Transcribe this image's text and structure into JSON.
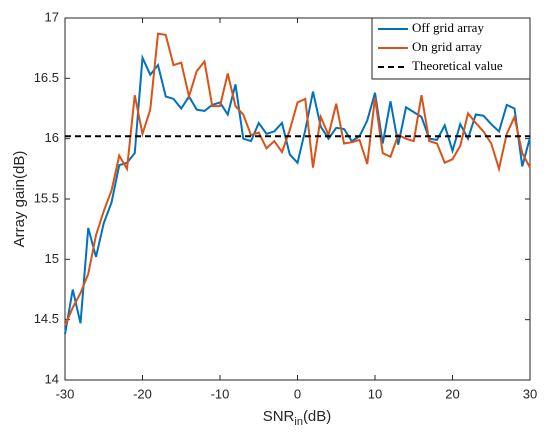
{
  "chart_data": {
    "type": "line",
    "ylabel": "Array gain(dB)",
    "xlabel": {
      "text": "SNR",
      "subscript": "in",
      "suffix": "(dB)"
    },
    "x": [
      -30,
      -29,
      -28,
      -27,
      -26,
      -25,
      -24,
      -23,
      -22,
      -21,
      -20,
      -19,
      -18,
      -17,
      -16,
      -15,
      -14,
      -13,
      -12,
      -11,
      -10,
      -9,
      -8,
      -7,
      -6,
      -5,
      -4,
      -3,
      -2,
      -1,
      0,
      1,
      2,
      3,
      4,
      5,
      6,
      7,
      8,
      9,
      10,
      11,
      12,
      13,
      14,
      15,
      16,
      17,
      18,
      19,
      20,
      21,
      22,
      23,
      24,
      25,
      26,
      27,
      28,
      29,
      30
    ],
    "series": [
      {
        "name": "Off grid array",
        "color": "#0072bd",
        "values": [
          14.38,
          14.75,
          14.47,
          15.26,
          15.02,
          15.3,
          15.47,
          15.78,
          15.8,
          15.88,
          16.67,
          16.53,
          16.61,
          16.35,
          16.33,
          16.25,
          16.35,
          16.24,
          16.23,
          16.28,
          16.3,
          16.2,
          16.45,
          16.0,
          15.98,
          16.13,
          16.04,
          16.06,
          16.13,
          15.87,
          15.8,
          16.07,
          16.39,
          16.1,
          16.0,
          16.09,
          16.08,
          15.98,
          16.02,
          16.15,
          16.38,
          15.96,
          16.31,
          15.95,
          16.26,
          16.22,
          16.18,
          16.0,
          15.99,
          16.11,
          15.9,
          16.12,
          16.0,
          16.2,
          16.19,
          16.12,
          16.06,
          16.28,
          16.25,
          15.77,
          16.01
        ]
      },
      {
        "name": "On grid array",
        "color": "#d95319",
        "values": [
          14.45,
          14.6,
          14.72,
          14.88,
          15.2,
          15.4,
          15.57,
          15.86,
          15.75,
          16.36,
          16.04,
          16.24,
          16.87,
          16.86,
          16.61,
          16.63,
          16.35,
          16.56,
          16.64,
          16.27,
          16.27,
          16.54,
          16.27,
          16.2,
          16.03,
          16.05,
          15.92,
          15.98,
          15.89,
          16.07,
          16.3,
          16.33,
          15.76,
          16.18,
          16.03,
          16.29,
          15.96,
          15.97,
          15.99,
          15.79,
          16.34,
          15.88,
          15.85,
          16.03,
          16.0,
          15.98,
          16.36,
          15.98,
          15.96,
          15.8,
          15.83,
          15.94,
          16.21,
          16.13,
          16.06,
          15.96,
          15.75,
          16.04,
          16.18,
          15.88,
          15.76
        ]
      }
    ],
    "reference": {
      "name": "Theoretical value",
      "value": 16.02,
      "color": "#000000"
    },
    "xlim": [
      -30,
      30
    ],
    "xticks": [
      -30,
      -20,
      -10,
      0,
      10,
      20,
      30
    ],
    "ylim": [
      14,
      17
    ],
    "yticks": [
      14,
      14.5,
      15,
      15.5,
      16,
      16.5,
      17
    ],
    "grid": false,
    "legend": "top-right"
  }
}
